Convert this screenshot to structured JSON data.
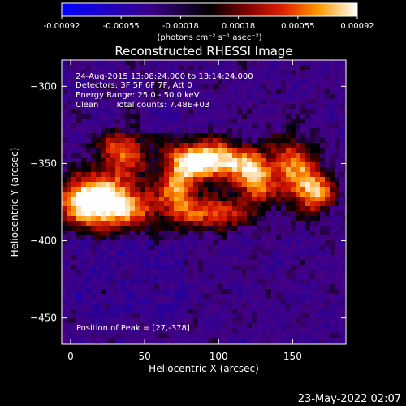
{
  "chart_data": {
    "type": "heatmap",
    "title": "Reconstructed RHESSI Image",
    "xlabel": "Heliocentric X (arcsec)",
    "ylabel": "Heliocentric Y (arcsec)",
    "xlim": [
      -6,
      186
    ],
    "ylim": [
      -467,
      -283
    ],
    "x_ticks": [
      0,
      50,
      100,
      150
    ],
    "y_ticks": [
      -300,
      -350,
      -400,
      -450
    ],
    "colorbar": {
      "min": -0.00092,
      "max": 0.00092,
      "tick_values": [
        -0.00092,
        -0.00055,
        -0.00018,
        0.00018,
        0.00055,
        0.00092
      ],
      "tick_labels": [
        "-0.00092",
        "-0.00055",
        "-0.00018",
        "0.00018",
        "0.00055",
        "0.00092"
      ],
      "unit_label": "(photons cm⁻² s⁻¹ asec⁻²)"
    },
    "annotations": {
      "time": "24-Aug-2015 13:08:24.000 to 13:14:24.000",
      "detectors": "Detectors: 3F 5F 6F 7F, Att 0",
      "energy": "Energy Range: 25.0 - 50.0 keV",
      "method": "Clean",
      "counts": "Total counts: 7.48E+03",
      "peak": "Position of Peak = [27,-378]"
    },
    "footer_date": "23-May-2022 02:07",
    "sources": [
      {
        "x": 27,
        "y": -378,
        "amp": 0.0009,
        "sx": 22,
        "sy": 10
      },
      {
        "x": 14,
        "y": -370,
        "amp": 0.0006,
        "sx": 14,
        "sy": 10
      },
      {
        "x": 35,
        "y": -343,
        "amp": 0.00055,
        "sx": 12,
        "sy": 12
      },
      {
        "x": 86,
        "y": -347,
        "amp": 0.00065,
        "sx": 14,
        "sy": 9
      },
      {
        "x": 105,
        "y": -349,
        "amp": 0.0006,
        "sx": 14,
        "sy": 8
      },
      {
        "x": 125,
        "y": -360,
        "amp": 0.0007,
        "sx": 9,
        "sy": 12
      },
      {
        "x": 73,
        "y": -366,
        "amp": 0.0006,
        "sx": 9,
        "sy": 14
      },
      {
        "x": 98,
        "y": -382,
        "amp": 0.0006,
        "sx": 14,
        "sy": 7
      },
      {
        "x": 150,
        "y": -352,
        "amp": 0.0006,
        "sx": 10,
        "sy": 14
      },
      {
        "x": 165,
        "y": -368,
        "amp": 0.0007,
        "sx": 9,
        "sy": 10
      }
    ]
  }
}
